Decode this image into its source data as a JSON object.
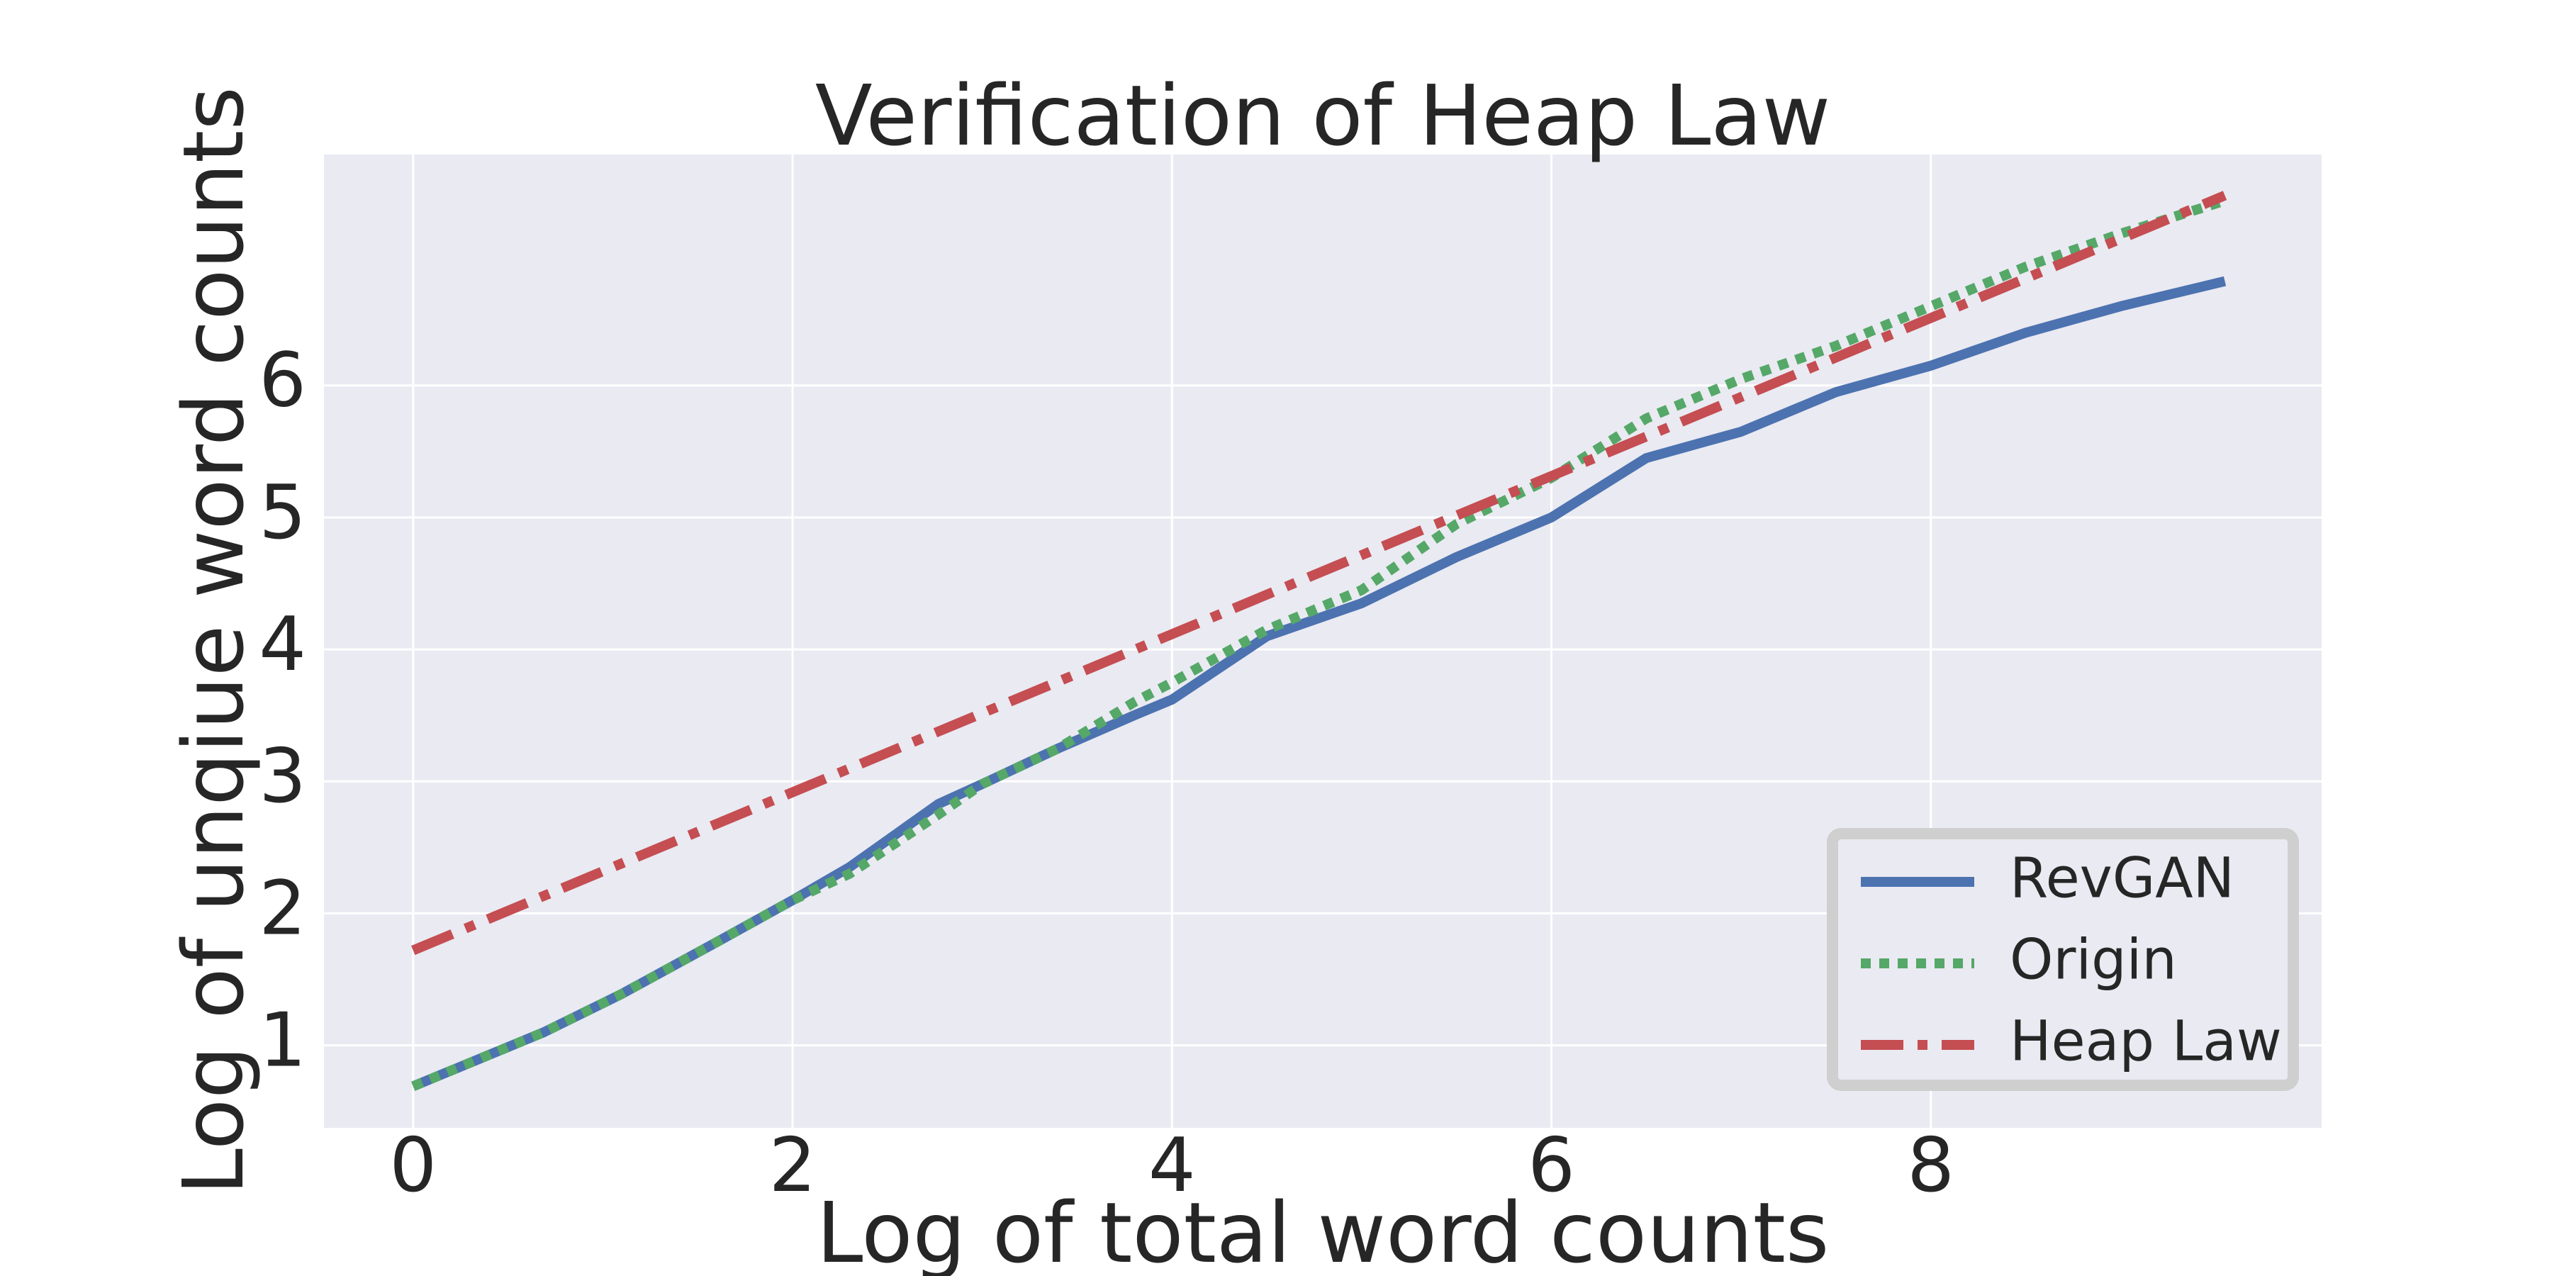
{
  "chart_data": {
    "type": "line",
    "title": "Verification of Heap Law",
    "x_label": "Log of total word counts",
    "y_label": "Log of unqiue word counts",
    "xlim": [
      -0.47,
      10.06
    ],
    "ylim": [
      0.375,
      7.75
    ],
    "xticks": [
      0,
      2,
      4,
      6,
      8
    ],
    "yticks": [
      1,
      2,
      3,
      4,
      5,
      6
    ],
    "grid": true,
    "legend": "lower right",
    "series": [
      {
        "name": "RevGAN",
        "color": "#4c72b0",
        "style": "solid",
        "x": [
          0,
          0.69,
          1.1,
          1.61,
          2,
          2.3,
          2.77,
          3,
          3.4,
          3.8,
          4,
          4.5,
          5,
          5.5,
          6,
          6.5,
          7,
          7.5,
          8,
          8.5,
          9,
          9.55
        ],
        "values": [
          0.69,
          1.1,
          1.39,
          1.79,
          2.1,
          2.35,
          2.83,
          2.98,
          3.25,
          3.5,
          3.62,
          4.1,
          4.35,
          4.7,
          5.0,
          5.45,
          5.65,
          5.95,
          6.15,
          6.4,
          6.6,
          6.79
        ]
      },
      {
        "name": "Origin",
        "color": "#55a868",
        "style": "dotted",
        "x": [
          0,
          0.69,
          1.1,
          1.61,
          2,
          2.3,
          2.77,
          3,
          3.4,
          3.8,
          4,
          4.5,
          5,
          5.5,
          6,
          6.5,
          7,
          7.5,
          8,
          8.5,
          9,
          9.55
        ],
        "values": [
          0.69,
          1.1,
          1.39,
          1.79,
          2.1,
          2.3,
          2.75,
          2.98,
          3.25,
          3.6,
          3.75,
          4.15,
          4.45,
          4.95,
          5.3,
          5.75,
          6.05,
          6.3,
          6.6,
          6.9,
          7.15,
          7.4
        ]
      },
      {
        "name": "Heap Law",
        "color": "#c44e52",
        "style": "dashdot",
        "x": [
          0,
          9.55
        ],
        "values": [
          1.72,
          7.44
        ]
      }
    ]
  }
}
